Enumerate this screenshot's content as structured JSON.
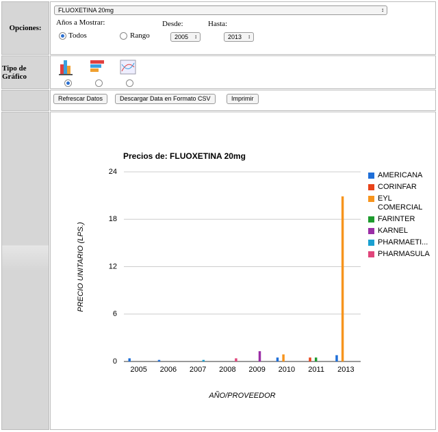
{
  "options": {
    "label": "Opciones:",
    "product": "FLUOXETINA 20mg",
    "years_label": "Años a Mostrar:",
    "radio_all": "Todos",
    "radio_range": "Rango",
    "from_label": "Desde:",
    "from_value": "2005",
    "to_label": "Hasta:",
    "to_value": "2013"
  },
  "chart_type": {
    "label": "Tipo de Gráfico"
  },
  "buttons": [
    "Refrescar Datos",
    "Descargar Data en Formato CSV",
    "Imprimir"
  ],
  "chart_data": {
    "type": "bar",
    "title": "Precios de: FLUOXETINA 20mg",
    "x_label": "AÑO/PROVEEDOR",
    "y_label": "PRECIO UNITARIO (LPS.)",
    "categories": [
      "2005",
      "2006",
      "2007",
      "2008",
      "2009",
      "2010",
      "2011",
      "2013"
    ],
    "series": [
      {
        "name": "AMERICANA",
        "color": "#1f6fd8",
        "values": [
          0.4,
          0.2,
          null,
          null,
          null,
          0.5,
          null,
          0.8
        ]
      },
      {
        "name": "CORINFAR",
        "color": "#e8431a",
        "values": [
          null,
          null,
          null,
          null,
          null,
          null,
          0.5,
          null
        ]
      },
      {
        "name": "EYL COMERCIAL",
        "color": "#f7941d",
        "values": [
          null,
          null,
          null,
          null,
          null,
          0.9,
          null,
          20.9
        ]
      },
      {
        "name": "FARINTER",
        "color": "#1e9b2e",
        "values": [
          null,
          null,
          null,
          null,
          null,
          null,
          0.5,
          null
        ]
      },
      {
        "name": "KARNEL",
        "color": "#9b2ea6",
        "values": [
          null,
          null,
          null,
          null,
          1.3,
          null,
          null,
          null
        ]
      },
      {
        "name": "PHARMAETI...",
        "color": "#1aa0d0",
        "values": [
          null,
          null,
          0.2,
          null,
          null,
          null,
          null,
          null
        ]
      },
      {
        "name": "PHARMASULA",
        "color": "#e0457b",
        "values": [
          null,
          null,
          null,
          0.4,
          null,
          null,
          null,
          null
        ]
      }
    ],
    "ylim": [
      0,
      24
    ],
    "yticks": [
      0,
      6,
      12,
      18,
      24
    ],
    "grid": true
  }
}
